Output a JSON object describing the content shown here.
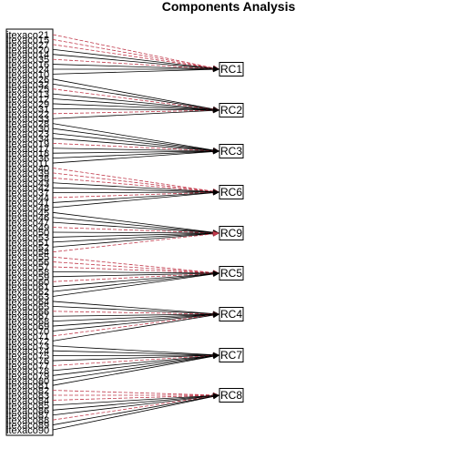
{
  "diagram": {
    "title": "Components Analysis",
    "items": [
      "itexaco21",
      "itexaco15",
      "itexaco27",
      "itexaco20",
      "itexaco14",
      "itexaco35",
      "itexaco16",
      "itexaco24",
      "itexaco10",
      "itexaco26",
      "itexaco32",
      "itexaco25",
      "itexaco13",
      "itexaco12",
      "itexaco29",
      "itexaco31",
      "itexaco22",
      "itexaco33",
      "itexaco28",
      "itexaco30",
      "itexaco23",
      "itexaco34",
      "itexaco19",
      "itexaco17",
      "itexaco18",
      "itexaco36",
      "itexaco11",
      "itexaco40",
      "itexaco39",
      "itexaco38",
      "itexaco43",
      "itexaco42",
      "itexaco37",
      "itexaco44",
      "itexaco41",
      "itexaco48",
      "itexaco45",
      "itexaco46",
      "itexaco47",
      "itexaco49",
      "itexaco50",
      "itexaco53",
      "itexaco51",
      "itexaco52",
      "itexaco54",
      "itexaco55",
      "itexaco56",
      "itexaco57",
      "itexaco58",
      "itexaco59",
      "itexaco60",
      "itexaco61",
      "itexaco62",
      "itexaco63",
      "itexaco64",
      "itexaco65",
      "itexaco66",
      "itexaco67",
      "itexaco68",
      "itexaco69",
      "itexaco70",
      "itexaco71",
      "itexaco72",
      "itexaco73",
      "itexaco74",
      "itexaco75",
      "itexaco76",
      "itexaco77",
      "itexaco78",
      "itexaco79",
      "itexaco80",
      "itexaco81",
      "itexaco82",
      "itexaco83",
      "itexaco84",
      "itexaco85",
      "itexaco86",
      "itexaco87",
      "itexaco88",
      "itexaco89",
      "itexaco90"
    ],
    "components": [
      "RC1",
      "RC2",
      "RC3",
      "RC6",
      "RC9",
      "RC5",
      "RC4",
      "RC7",
      "RC8"
    ],
    "colors": {
      "positive": "#000000",
      "negative": "#c0394b",
      "box": "#000000"
    },
    "legend_note": "solid = positive loading, dashed red = negative loading"
  }
}
